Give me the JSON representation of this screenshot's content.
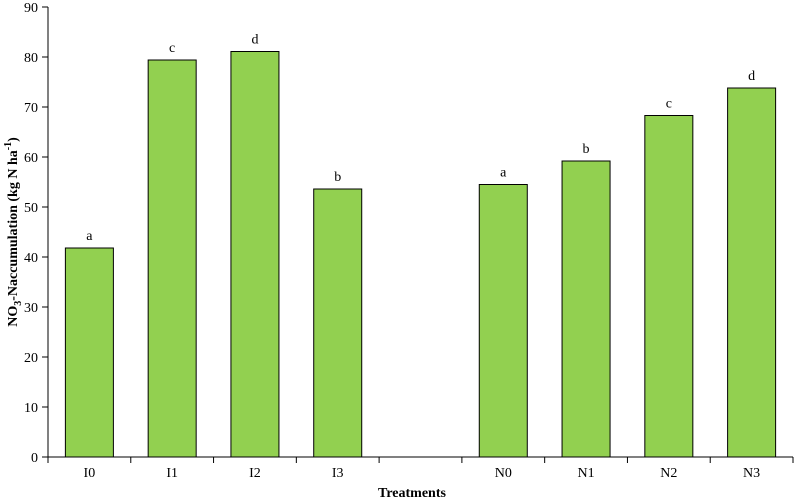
{
  "chart_data": {
    "type": "bar",
    "categories": [
      "I0",
      "I1",
      "I2",
      "I3",
      "",
      "N0",
      "N1",
      "N2",
      "N3"
    ],
    "values": [
      41.8,
      79.4,
      81.1,
      53.6,
      null,
      54.5,
      59.2,
      68.3,
      73.8
    ],
    "significance_labels": [
      "a",
      "c",
      "d",
      "b",
      "",
      "a",
      "b",
      "c",
      "d"
    ],
    "title": "",
    "xlabel": "Treatments",
    "ylabel_main": "NO",
    "ylabel_sub": "3",
    "ylabel_rest": "-Naccumulation  (kg N ha",
    "ylabel_sup": "-1",
    "ylabel_close": ")",
    "ylim": [
      0,
      90
    ],
    "yticks": [
      0,
      10,
      20,
      30,
      40,
      50,
      60,
      70,
      80,
      90
    ],
    "bar_color": "#92d050",
    "grid": false,
    "legend": "none"
  }
}
